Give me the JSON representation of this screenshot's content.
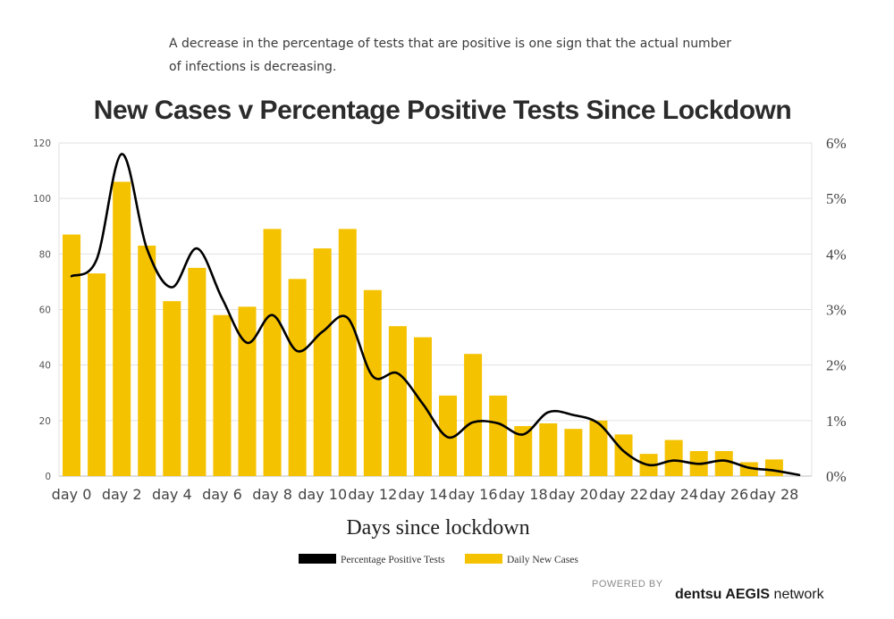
{
  "subtitle": "A decrease in the percentage of tests that are positive is one sign that the actual number of infections is decreasing.",
  "chart_data": {
    "type": "bar",
    "title": "New Cases v Percentage Positive Tests Since Lockdown",
    "xlabel": "Days since lockdown",
    "categories": [
      "day 0",
      "day 1",
      "day 2",
      "day 3",
      "day 4",
      "day 5",
      "day 6",
      "day 7",
      "day 8",
      "day 9",
      "day 10",
      "day 11",
      "day 12",
      "day 13",
      "day 14",
      "day 15",
      "day 16",
      "day 17",
      "day 18",
      "day 19",
      "day 20",
      "day 21",
      "day 22",
      "day 23",
      "day 24",
      "day 25",
      "day 26",
      "day 27",
      "day 28",
      "day 29"
    ],
    "x_tick_labels": [
      "day 0",
      "day 2",
      "day 4",
      "day 6",
      "day 8",
      "day 10",
      "day 12",
      "day 14",
      "day 16",
      "day 18",
      "day 20",
      "day 22",
      "day 24",
      "day 26",
      "day 28"
    ],
    "y_left_ticks": [
      "0",
      "20",
      "40",
      "60",
      "80",
      "100",
      "120"
    ],
    "y_right_ticks": [
      "0%",
      "1%",
      "2%",
      "3%",
      "4%",
      "5%",
      "6%"
    ],
    "ylim_left": [
      0,
      120
    ],
    "ylim_right": [
      0,
      6
    ],
    "grid": true,
    "legend_position": "bottom-center",
    "series": [
      {
        "name": "Daily New Cases",
        "type": "bar",
        "axis": "left",
        "color": "#F5C200",
        "values": [
          87,
          73,
          106,
          83,
          63,
          75,
          58,
          61,
          89,
          71,
          82,
          89,
          67,
          54,
          50,
          29,
          44,
          29,
          18,
          19,
          17,
          20,
          15,
          8,
          13,
          9,
          9,
          5,
          6,
          null
        ]
      },
      {
        "name": "Percentage Positive Tests",
        "type": "line",
        "axis": "right",
        "color": "#000000",
        "values": [
          3.6,
          3.9,
          5.8,
          4.1,
          3.4,
          4.1,
          3.2,
          2.4,
          2.9,
          2.25,
          2.6,
          2.85,
          1.8,
          1.85,
          1.3,
          0.7,
          0.97,
          0.95,
          0.75,
          1.15,
          1.1,
          0.95,
          0.45,
          0.2,
          0.28,
          0.22,
          0.28,
          0.15,
          0.1,
          0.02
        ]
      }
    ]
  },
  "footer": {
    "powered_by": "POWERED BY",
    "brand_bold": "dentsu AEGIS",
    "brand_light": " network"
  }
}
